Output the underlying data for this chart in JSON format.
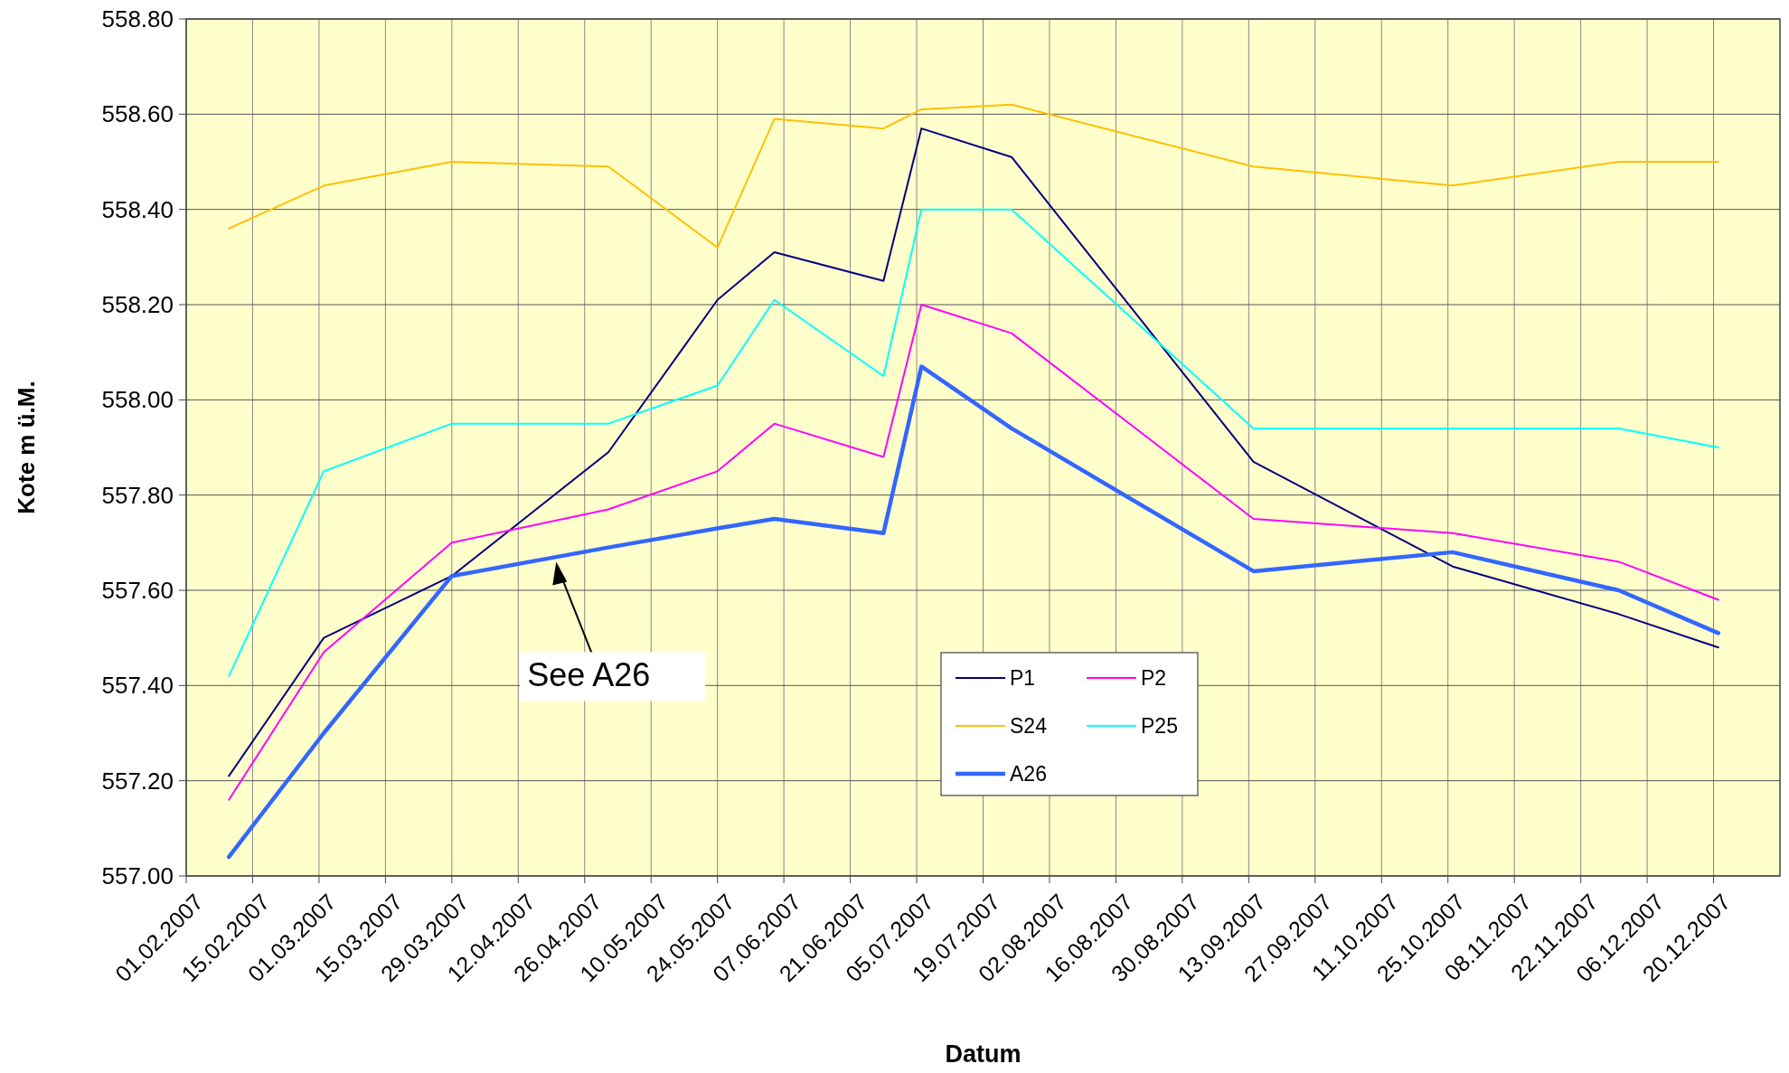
{
  "chart_data": {
    "type": "line",
    "xlabel": "Datum",
    "ylabel": "Kote m ü.M.",
    "x": [
      "2007-02-10",
      "2007-03-02",
      "2007-03-29",
      "2007-05-01",
      "2007-05-24",
      "2007-06-05",
      "2007-06-28",
      "2007-07-06",
      "2007-07-25",
      "2007-09-14",
      "2007-10-26",
      "2007-11-30",
      "2007-12-21"
    ],
    "series": [
      {
        "name": "P1",
        "color": "#000080",
        "values": [
          557.21,
          557.5,
          557.63,
          557.89,
          558.21,
          558.31,
          558.25,
          558.57,
          558.51,
          557.87,
          557.65,
          557.55,
          557.48
        ]
      },
      {
        "name": "P2",
        "color": "#ff00ff",
        "values": [
          557.16,
          557.47,
          557.7,
          557.77,
          557.85,
          557.95,
          557.88,
          558.2,
          558.14,
          557.75,
          557.72,
          557.66,
          557.58
        ]
      },
      {
        "name": "S24",
        "color": "#ffc000",
        "values": [
          558.36,
          558.45,
          558.5,
          558.49,
          558.32,
          558.59,
          558.57,
          558.61,
          558.62,
          558.49,
          558.45,
          558.5,
          558.5
        ]
      },
      {
        "name": "P25",
        "color": "#00ffff",
        "values": [
          557.42,
          557.85,
          557.95,
          557.95,
          558.03,
          558.21,
          558.05,
          558.4,
          558.4,
          557.94,
          557.94,
          557.94,
          557.9
        ]
      },
      {
        "name": "A26",
        "color": "#3366ff",
        "values": [
          557.04,
          557.3,
          557.63,
          557.69,
          557.73,
          557.75,
          557.72,
          558.07,
          557.94,
          557.64,
          557.68,
          557.6,
          557.51
        ]
      }
    ],
    "xlim": [
      "2007-02-01",
      "2008-01-03"
    ],
    "xticks": [
      {
        "value": "2007-02-01",
        "label": "01.02.2007"
      },
      {
        "value": "2007-02-15",
        "label": "15.02.2007"
      },
      {
        "value": "2007-03-01",
        "label": "01.03.2007"
      },
      {
        "value": "2007-03-15",
        "label": "15.03.2007"
      },
      {
        "value": "2007-03-29",
        "label": "29.03.2007"
      },
      {
        "value": "2007-04-12",
        "label": "12.04.2007"
      },
      {
        "value": "2007-04-26",
        "label": "26.04.2007"
      },
      {
        "value": "2007-05-10",
        "label": "10.05.2007"
      },
      {
        "value": "2007-05-24",
        "label": "24.05.2007"
      },
      {
        "value": "2007-06-07",
        "label": "07.06.2007"
      },
      {
        "value": "2007-06-21",
        "label": "21.06.2007"
      },
      {
        "value": "2007-07-05",
        "label": "05.07.2007"
      },
      {
        "value": "2007-07-19",
        "label": "19.07.2007"
      },
      {
        "value": "2007-08-02",
        "label": "02.08.2007"
      },
      {
        "value": "2007-08-16",
        "label": "16.08.2007"
      },
      {
        "value": "2007-08-30",
        "label": "30.08.2007"
      },
      {
        "value": "2007-09-13",
        "label": "13.09.2007"
      },
      {
        "value": "2007-09-27",
        "label": "27.09.2007"
      },
      {
        "value": "2007-10-11",
        "label": "11.10.2007"
      },
      {
        "value": "2007-10-25",
        "label": "25.10.2007"
      },
      {
        "value": "2007-11-08",
        "label": "08.11.2007"
      },
      {
        "value": "2007-11-22",
        "label": "22.11.2007"
      },
      {
        "value": "2007-12-06",
        "label": "06.12.2007"
      },
      {
        "value": "2007-12-20",
        "label": "20.12.2007"
      }
    ],
    "ylim": [
      557.0,
      558.8
    ],
    "yticks": [
      {
        "value": 557.0,
        "label": "557.00"
      },
      {
        "value": 557.2,
        "label": "557.20"
      },
      {
        "value": 557.4,
        "label": "557.40"
      },
      {
        "value": 557.6,
        "label": "557.60"
      },
      {
        "value": 557.8,
        "label": "557.80"
      },
      {
        "value": 558.0,
        "label": "558.00"
      },
      {
        "value": 558.2,
        "label": "558.20"
      },
      {
        "value": 558.4,
        "label": "558.40"
      },
      {
        "value": 558.6,
        "label": "558.60"
      },
      {
        "value": 558.8,
        "label": "558.80"
      }
    ],
    "grid": true,
    "legend": "bottom",
    "marker": "none",
    "line_style": "solid",
    "annotations": [
      {
        "text": "See A26",
        "x": "2007-04-20",
        "y": 557.66
      }
    ]
  }
}
